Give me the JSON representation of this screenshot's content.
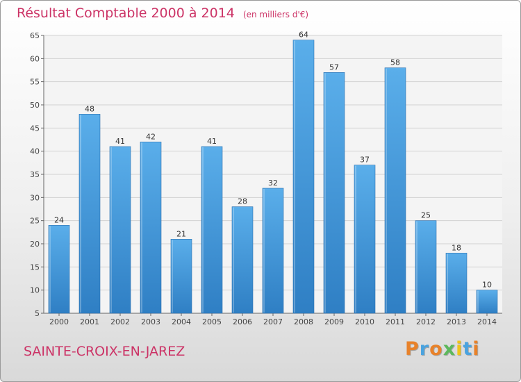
{
  "chart_data": {
    "type": "bar",
    "title": "Résultat Comptable 2000 à 2014",
    "subtitle": "(en milliers d'€)",
    "categories": [
      "2000",
      "2001",
      "2002",
      "2003",
      "2004",
      "2005",
      "2006",
      "2007",
      "2008",
      "2009",
      "2010",
      "2011",
      "2012",
      "2013",
      "2014"
    ],
    "values": [
      24,
      48,
      41,
      42,
      21,
      41,
      28,
      32,
      64,
      57,
      37,
      58,
      25,
      18,
      10
    ],
    "ylim": [
      5,
      65
    ],
    "yticks": [
      5,
      10,
      15,
      20,
      25,
      30,
      35,
      40,
      45,
      50,
      55,
      60,
      65
    ],
    "grid": true,
    "bar_color": "#4a9ee0"
  },
  "footer": {
    "place": "SAINTE-CROIX-EN-JAREZ",
    "logo_letters": [
      "P",
      "r",
      "o",
      "x",
      "i",
      "t",
      "i"
    ],
    "logo_colors": [
      "#e8822a",
      "#4aa3df",
      "#e8822a",
      "#5cb85c",
      "#f0c419",
      "#4aa3df",
      "#e8822a"
    ]
  }
}
